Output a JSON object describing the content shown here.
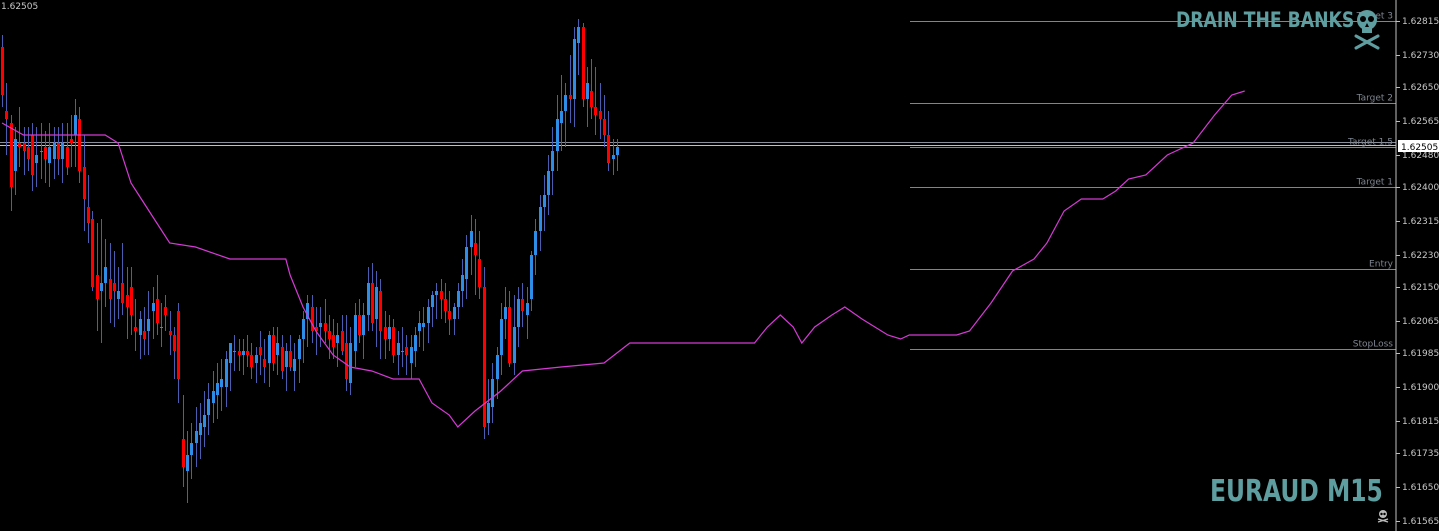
{
  "brand": {
    "title": "DRAIN THE BANKS",
    "symbol_timeframe": "EURAUD M15"
  },
  "icons": {
    "logo": "skull-crossbones-icon",
    "small_logo": "skull-icon"
  },
  "colors": {
    "background": "#000000",
    "bull": "#2e8de6",
    "bear": "#ff0000",
    "wick": "#4a5db0",
    "trail": "#d63ad6",
    "level_line": "#7f8590",
    "axis_text": "#c8c8c8",
    "brand": "#5f9ea0"
  },
  "chart_data": {
    "type": "candlestick",
    "title": "EURAUD M15",
    "ylim": [
      1.61565,
      1.629
    ],
    "price_label_top_left": "1.62505",
    "current_price": 1.62505,
    "current_price_label": "1.62505",
    "y_ticks": [
      "1.62815",
      "1.62730",
      "1.62650",
      "1.62565",
      "1.62480",
      "1.62400",
      "1.62315",
      "1.62230",
      "1.62150",
      "1.62065",
      "1.61985",
      "1.61900",
      "1.61815",
      "1.61735",
      "1.61650",
      "1.61565"
    ],
    "levels": [
      {
        "label": "Target 3",
        "price": 1.62815
      },
      {
        "label": "Target 2",
        "price": 1.6261
      },
      {
        "label": "Target 1.5",
        "price": 1.625
      },
      {
        "label": "Target 1",
        "price": 1.624
      },
      {
        "label": "Entry",
        "price": 1.62195
      },
      {
        "label": "StopLoss",
        "price": 1.61995
      }
    ],
    "candles": [
      [
        1.6275,
        1.6278,
        1.626,
        1.6263
      ],
      [
        1.6259,
        1.6266,
        1.6248,
        1.6257
      ],
      [
        1.6256,
        1.6258,
        1.6234,
        1.624
      ],
      [
        1.6244,
        1.6255,
        1.6238,
        1.6252
      ],
      [
        1.6251,
        1.626,
        1.6245,
        1.625
      ],
      [
        1.6251,
        1.6255,
        1.6243,
        1.6249
      ],
      [
        1.625,
        1.6255,
        1.6244,
        1.6247
      ],
      [
        1.6253,
        1.6256,
        1.6239,
        1.6243
      ],
      [
        1.6246,
        1.6255,
        1.624,
        1.6248
      ],
      [
        1.6249,
        1.6256,
        1.6242,
        1.6249
      ],
      [
        1.625,
        1.6254,
        1.6241,
        1.6247
      ],
      [
        1.6246,
        1.6256,
        1.624,
        1.625
      ],
      [
        1.6247,
        1.6255,
        1.6242,
        1.6251
      ],
      [
        1.6251,
        1.6255,
        1.6243,
        1.6247
      ],
      [
        1.6247,
        1.6256,
        1.6241,
        1.6251
      ],
      [
        1.625,
        1.6256,
        1.6243,
        1.6245
      ],
      [
        1.6252,
        1.6258,
        1.6245,
        1.6251
      ],
      [
        1.6253,
        1.6262,
        1.6245,
        1.6258
      ],
      [
        1.6257,
        1.626,
        1.6241,
        1.6244
      ],
      [
        1.6245,
        1.6253,
        1.6229,
        1.6237
      ],
      [
        1.6235,
        1.6243,
        1.6226,
        1.6231
      ],
      [
        1.6232,
        1.6234,
        1.6214,
        1.6215
      ],
      [
        1.6218,
        1.6231,
        1.6204,
        1.6212
      ],
      [
        1.6214,
        1.6232,
        1.6201,
        1.6216
      ],
      [
        1.6216,
        1.6227,
        1.621,
        1.622
      ],
      [
        1.6217,
        1.6226,
        1.6206,
        1.6212
      ],
      [
        1.6216,
        1.6224,
        1.6205,
        1.6214
      ],
      [
        1.6212,
        1.622,
        1.6207,
        1.6214
      ],
      [
        1.6216,
        1.6226,
        1.6208,
        1.6211
      ],
      [
        1.6213,
        1.622,
        1.6202,
        1.621
      ],
      [
        1.6215,
        1.622,
        1.6203,
        1.6208
      ],
      [
        1.6205,
        1.6212,
        1.6199,
        1.6204
      ],
      [
        1.6203,
        1.6209,
        1.6197,
        1.6207
      ],
      [
        1.6204,
        1.621,
        1.6198,
        1.6202
      ],
      [
        1.6204,
        1.6214,
        1.6198,
        1.6207
      ],
      [
        1.6209,
        1.6215,
        1.6202,
        1.6211
      ],
      [
        1.6212,
        1.6218,
        1.6203,
        1.6206
      ],
      [
        1.6205,
        1.6211,
        1.62,
        1.6205
      ],
      [
        1.621,
        1.6213,
        1.6204,
        1.6208
      ],
      [
        1.6204,
        1.6209,
        1.6198,
        1.6203
      ],
      [
        1.6203,
        1.6205,
        1.6192,
        1.6199
      ],
      [
        1.6209,
        1.6211,
        1.6186,
        1.6192
      ],
      [
        1.6177,
        1.6188,
        1.6165,
        1.617
      ],
      [
        1.6169,
        1.6179,
        1.6161,
        1.6173
      ],
      [
        1.6173,
        1.6181,
        1.6167,
        1.6176
      ],
      [
        1.6176,
        1.6185,
        1.617,
        1.6179
      ],
      [
        1.6178,
        1.6186,
        1.6172,
        1.6181
      ],
      [
        1.618,
        1.6189,
        1.6175,
        1.6183
      ],
      [
        1.6183,
        1.6191,
        1.6178,
        1.6187
      ],
      [
        1.6186,
        1.6194,
        1.6181,
        1.6189
      ],
      [
        1.6188,
        1.6196,
        1.6182,
        1.6191
      ],
      [
        1.619,
        1.6197,
        1.6184,
        1.6192
      ],
      [
        1.619,
        1.6199,
        1.6185,
        1.6197
      ],
      [
        1.6196,
        1.6201,
        1.6189,
        1.6201
      ],
      [
        1.6199,
        1.6203,
        1.6194,
        1.6199
      ],
      [
        1.6199,
        1.6202,
        1.6194,
        1.6198
      ],
      [
        1.6198,
        1.6202,
        1.6193,
        1.6199
      ],
      [
        1.6199,
        1.6203,
        1.6195,
        1.6198
      ],
      [
        1.6198,
        1.6201,
        1.6192,
        1.6195
      ],
      [
        1.6196,
        1.62,
        1.6191,
        1.6198
      ],
      [
        1.62,
        1.6204,
        1.6193,
        1.6198
      ],
      [
        1.6197,
        1.6202,
        1.6191,
        1.6195
      ],
      [
        1.6196,
        1.6204,
        1.619,
        1.6203
      ],
      [
        1.6203,
        1.6205,
        1.6194,
        1.6196
      ],
      [
        1.6198,
        1.6205,
        1.6193,
        1.6201
      ],
      [
        1.62,
        1.6203,
        1.6192,
        1.6194
      ],
      [
        1.6195,
        1.6201,
        1.6189,
        1.6199
      ],
      [
        1.6199,
        1.6203,
        1.6194,
        1.6195
      ],
      [
        1.6194,
        1.6201,
        1.6189,
        1.6197
      ],
      [
        1.6197,
        1.6203,
        1.6191,
        1.6202
      ],
      [
        1.6202,
        1.6209,
        1.6196,
        1.6207
      ],
      [
        1.6207,
        1.6213,
        1.62,
        1.6211
      ],
      [
        1.621,
        1.6213,
        1.6201,
        1.6204
      ],
      [
        1.6205,
        1.621,
        1.6198,
        1.6204
      ],
      [
        1.6205,
        1.621,
        1.62,
        1.6206
      ],
      [
        1.6206,
        1.6212,
        1.6201,
        1.6204
      ],
      [
        1.6204,
        1.6208,
        1.6197,
        1.6202
      ],
      [
        1.6203,
        1.6207,
        1.6197,
        1.62
      ],
      [
        1.6201,
        1.6206,
        1.6195,
        1.6203
      ],
      [
        1.6204,
        1.6208,
        1.6198,
        1.6199
      ],
      [
        1.6201,
        1.6208,
        1.6189,
        1.6192
      ],
      [
        1.6191,
        1.6205,
        1.6188,
        1.6201
      ],
      [
        1.6199,
        1.6211,
        1.6195,
        1.6208
      ],
      [
        1.6208,
        1.6212,
        1.6201,
        1.6203
      ],
      [
        1.6203,
        1.6211,
        1.6197,
        1.6208
      ],
      [
        1.6208,
        1.622,
        1.6204,
        1.6216
      ],
      [
        1.6216,
        1.6221,
        1.6204,
        1.6206
      ],
      [
        1.6207,
        1.6219,
        1.62,
        1.6215
      ],
      [
        1.6214,
        1.6217,
        1.6197,
        1.6204
      ],
      [
        1.6205,
        1.6209,
        1.6197,
        1.6202
      ],
      [
        1.6202,
        1.6208,
        1.6199,
        1.6205
      ],
      [
        1.6205,
        1.6207,
        1.6196,
        1.6198
      ],
      [
        1.6198,
        1.6204,
        1.6193,
        1.6201
      ],
      [
        1.6199,
        1.6205,
        1.6195,
        1.6199
      ],
      [
        1.62,
        1.6203,
        1.6193,
        1.6198
      ],
      [
        1.6196,
        1.6203,
        1.6192,
        1.62
      ],
      [
        1.6199,
        1.6205,
        1.6195,
        1.6203
      ],
      [
        1.6204,
        1.6209,
        1.62,
        1.6206
      ],
      [
        1.6205,
        1.621,
        1.6199,
        1.6206
      ],
      [
        1.6206,
        1.6212,
        1.6201,
        1.621
      ],
      [
        1.621,
        1.6214,
        1.6205,
        1.6213
      ],
      [
        1.6213,
        1.6216,
        1.6207,
        1.6214
      ],
      [
        1.6214,
        1.6217,
        1.6207,
        1.6212
      ],
      [
        1.6212,
        1.6216,
        1.6206,
        1.6209
      ],
      [
        1.6209,
        1.6214,
        1.6203,
        1.6207
      ],
      [
        1.6207,
        1.6211,
        1.6203,
        1.621
      ],
      [
        1.621,
        1.6216,
        1.6207,
        1.6214
      ],
      [
        1.6214,
        1.6222,
        1.621,
        1.6218
      ],
      [
        1.6217,
        1.6228,
        1.6212,
        1.6225
      ],
      [
        1.6225,
        1.6233,
        1.6218,
        1.6229
      ],
      [
        1.6226,
        1.6232,
        1.6213,
        1.6223
      ],
      [
        1.6222,
        1.6229,
        1.6212,
        1.6215
      ],
      [
        1.6215,
        1.622,
        1.6177,
        1.618
      ],
      [
        1.6181,
        1.6192,
        1.6178,
        1.6186
      ],
      [
        1.6185,
        1.6196,
        1.6181,
        1.6192
      ],
      [
        1.6192,
        1.62,
        1.6187,
        1.6198
      ],
      [
        1.6198,
        1.6211,
        1.6193,
        1.6207
      ],
      [
        1.6207,
        1.6215,
        1.6202,
        1.621
      ],
      [
        1.621,
        1.6214,
        1.6195,
        1.6196
      ],
      [
        1.6196,
        1.6213,
        1.6193,
        1.6205
      ],
      [
        1.6205,
        1.6215,
        1.62,
        1.6212
      ],
      [
        1.6212,
        1.6216,
        1.6205,
        1.6209
      ],
      [
        1.6208,
        1.6215,
        1.6202,
        1.6211
      ],
      [
        1.6212,
        1.6224,
        1.6209,
        1.6223
      ],
      [
        1.6223,
        1.6232,
        1.6218,
        1.6229
      ],
      [
        1.6229,
        1.6238,
        1.6224,
        1.6235
      ],
      [
        1.6235,
        1.6243,
        1.6229,
        1.6238
      ],
      [
        1.6238,
        1.6248,
        1.6233,
        1.6244
      ],
      [
        1.6244,
        1.6255,
        1.6238,
        1.6249
      ],
      [
        1.6249,
        1.6263,
        1.6244,
        1.6257
      ],
      [
        1.6256,
        1.6268,
        1.6249,
        1.6259
      ],
      [
        1.6259,
        1.6266,
        1.625,
        1.6263
      ],
      [
        1.6263,
        1.6273,
        1.6256,
        1.6262
      ],
      [
        1.6262,
        1.628,
        1.6255,
        1.6277
      ],
      [
        1.6276,
        1.6282,
        1.6268,
        1.628
      ],
      [
        1.628,
        1.6281,
        1.626,
        1.6262
      ],
      [
        1.6262,
        1.627,
        1.6255,
        1.6266
      ],
      [
        1.6264,
        1.6272,
        1.6257,
        1.626
      ],
      [
        1.626,
        1.627,
        1.6253,
        1.6258
      ],
      [
        1.6259,
        1.6266,
        1.6252,
        1.6257
      ],
      [
        1.6257,
        1.6263,
        1.625,
        1.6253
      ],
      [
        1.6253,
        1.6259,
        1.6244,
        1.6246
      ],
      [
        1.6247,
        1.6252,
        1.6243,
        1.6248
      ],
      [
        1.6248,
        1.6252,
        1.6244,
        1.625
      ]
    ],
    "trail": [
      [
        0,
        1.6256
      ],
      [
        5,
        1.6253
      ],
      [
        24,
        1.6253
      ],
      [
        27,
        1.6251
      ],
      [
        30,
        1.6241
      ],
      [
        33,
        1.6236
      ],
      [
        36,
        1.6231
      ],
      [
        39,
        1.6226
      ],
      [
        45,
        1.6225
      ],
      [
        53,
        1.6222
      ],
      [
        66,
        1.6222
      ],
      [
        67,
        1.6218
      ],
      [
        70,
        1.621
      ],
      [
        73,
        1.6204
      ],
      [
        77,
        1.6198
      ],
      [
        81,
        1.6195
      ],
      [
        86,
        1.6194
      ],
      [
        91,
        1.6192
      ],
      [
        97,
        1.6192
      ],
      [
        100,
        1.6186
      ],
      [
        104,
        1.6183
      ],
      [
        106,
        1.618
      ],
      [
        110,
        1.6184
      ],
      [
        116,
        1.6189
      ],
      [
        121,
        1.6194
      ],
      [
        130,
        1.6195
      ],
      [
        140,
        1.6196
      ],
      [
        146,
        1.6201
      ],
      [
        152,
        1.6201
      ],
      [
        175,
        1.6201
      ],
      [
        178,
        1.6205
      ],
      [
        181,
        1.6208
      ],
      [
        184,
        1.6205
      ],
      [
        186,
        1.6201
      ],
      [
        189,
        1.6205
      ],
      [
        193,
        1.6208
      ],
      [
        196,
        1.621
      ],
      [
        200,
        1.6207
      ],
      [
        203,
        1.6205
      ],
      [
        206,
        1.6203
      ],
      [
        209,
        1.6202
      ],
      [
        211,
        1.6203
      ],
      [
        214,
        1.6203
      ],
      [
        222,
        1.6203
      ],
      [
        225,
        1.6204
      ],
      [
        230,
        1.6211
      ],
      [
        235,
        1.6219
      ],
      [
        240,
        1.6222
      ],
      [
        243,
        1.6226
      ],
      [
        247,
        1.6234
      ],
      [
        251,
        1.6237
      ],
      [
        256,
        1.6237
      ],
      [
        259,
        1.6239
      ],
      [
        262,
        1.6242
      ],
      [
        266,
        1.6243
      ],
      [
        271,
        1.6248
      ],
      [
        277,
        1.6251
      ],
      [
        282,
        1.6258
      ],
      [
        286,
        1.6263
      ],
      [
        289,
        1.6264
      ]
    ]
  }
}
